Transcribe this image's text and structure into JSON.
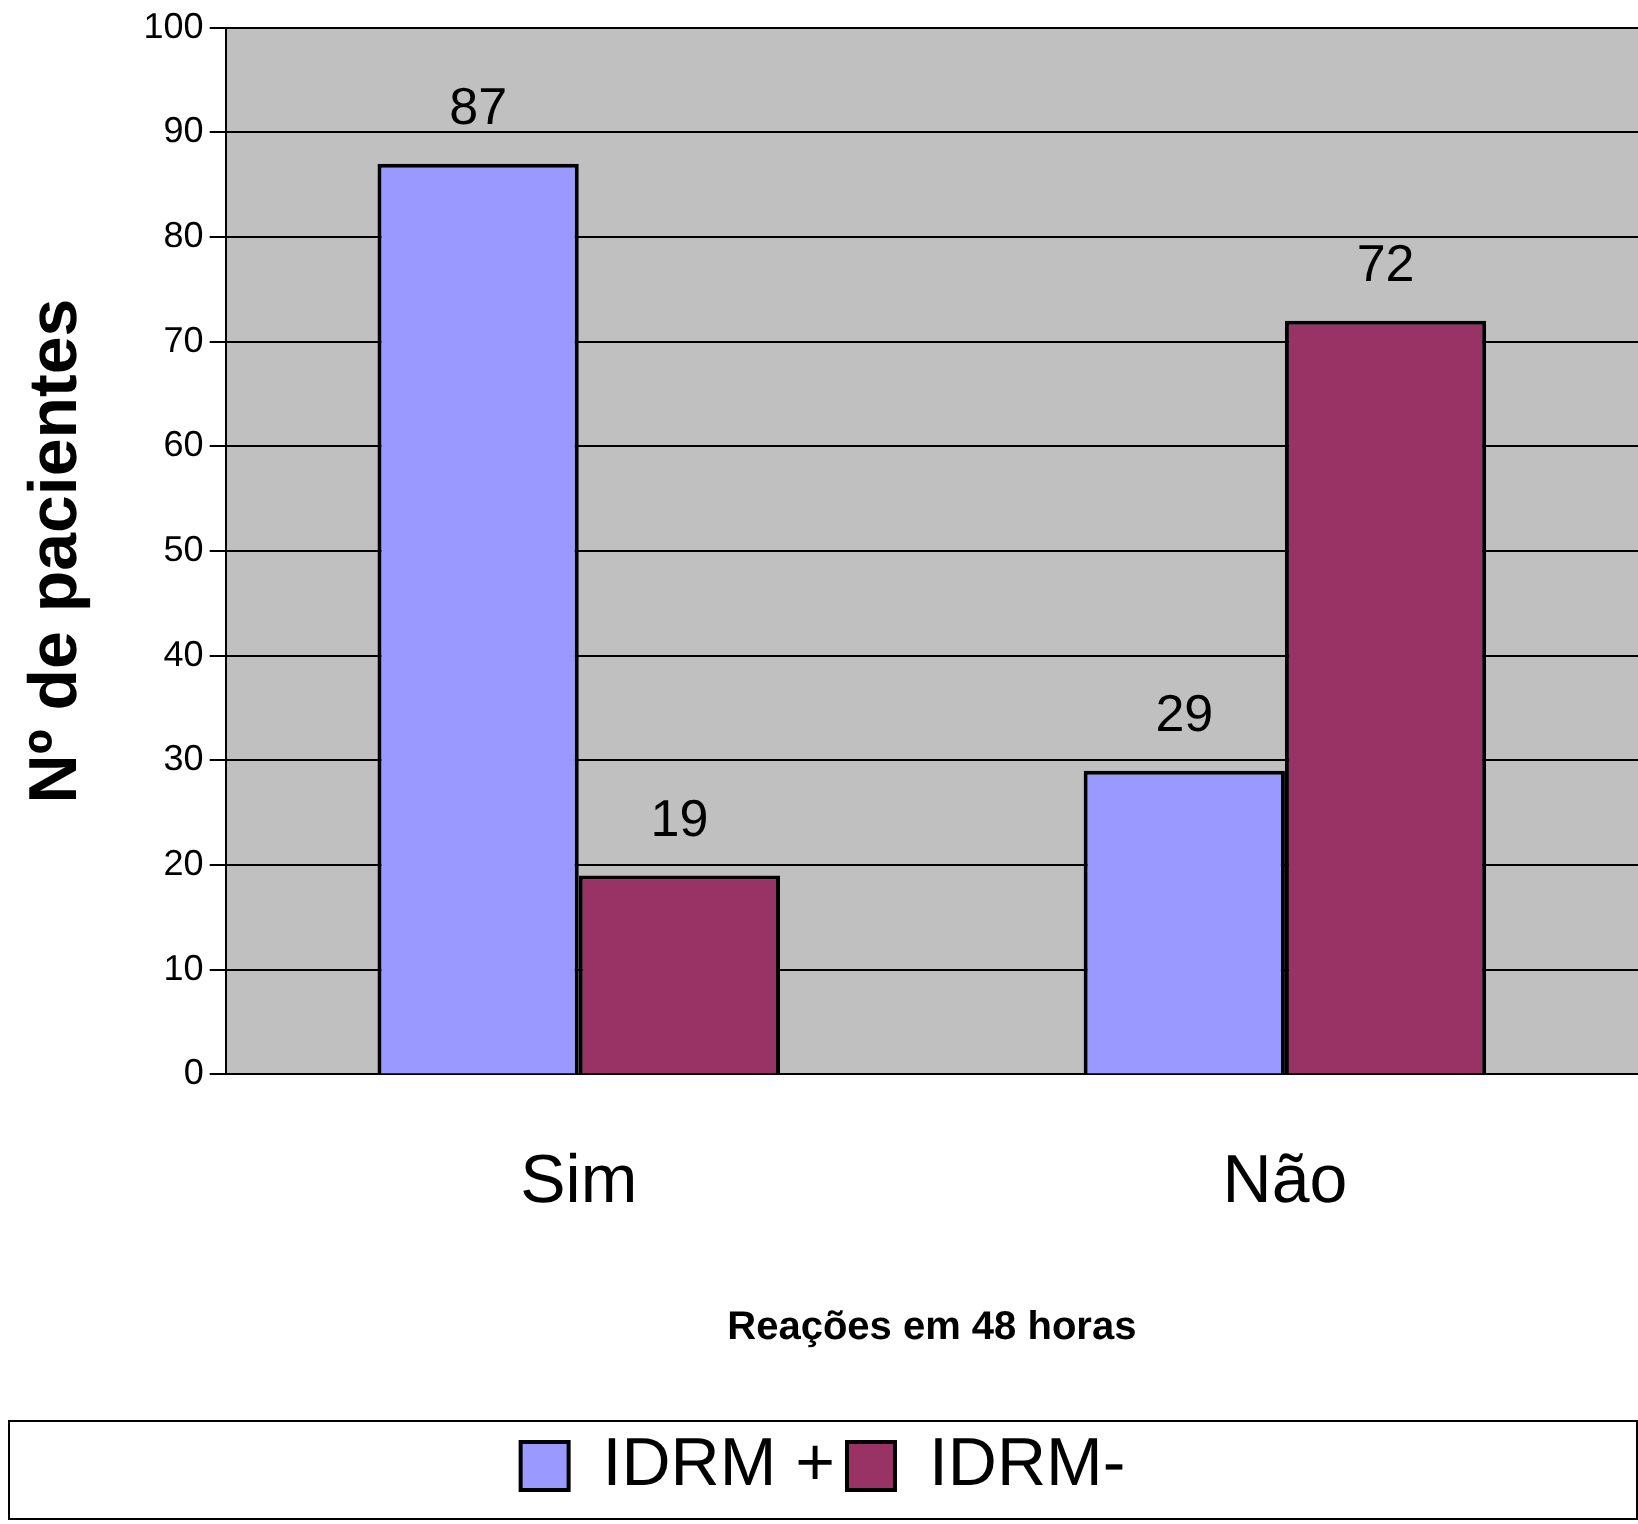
{
  "chart_data": {
    "type": "bar",
    "xlabel": "Reações em 48 horas",
    "ylabel": "Nº de pacientes",
    "categories": [
      "Sim",
      "Não"
    ],
    "series": [
      {
        "name": "IDRM +",
        "color": "#9999ff",
        "values": [
          87,
          29
        ]
      },
      {
        "name": "IDRM-",
        "color": "#993366",
        "values": [
          19,
          72
        ]
      }
    ],
    "ylim": [
      0,
      100
    ],
    "yticks": [
      0,
      10,
      20,
      30,
      40,
      50,
      60,
      70,
      80,
      90,
      100
    ],
    "grid": "y",
    "legend": "bottom",
    "data_labels": true
  }
}
